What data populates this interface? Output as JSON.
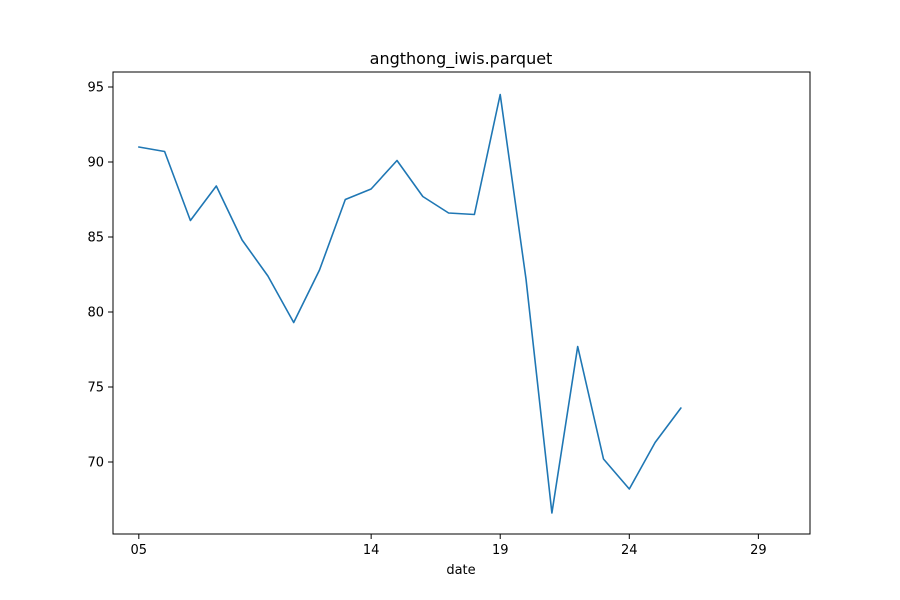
{
  "chart_data": {
    "type": "line",
    "title": "angthong_iwis.parquet",
    "xlabel": "date",
    "ylabel": "",
    "x_tick_labels": [
      "05",
      "14",
      "19",
      "24",
      "29"
    ],
    "x_tick_values": [
      5,
      14,
      19,
      24,
      29
    ],
    "y_ticks": [
      70,
      75,
      80,
      85,
      90,
      95
    ],
    "xlim": [
      4,
      31
    ],
    "ylim": [
      65.2,
      96.0
    ],
    "grid": false,
    "legend": "none",
    "series": [
      {
        "color": "#1f77b4",
        "points": [
          {
            "x": 5,
            "y": 91.0
          },
          {
            "x": 6,
            "y": 90.7
          },
          {
            "x": 7,
            "y": 86.1
          },
          {
            "x": 8,
            "y": 88.4
          },
          {
            "x": 9,
            "y": 84.8
          },
          {
            "x": 10,
            "y": 82.4
          },
          {
            "x": 11,
            "y": 79.3
          },
          {
            "x": 12,
            "y": 82.8
          },
          {
            "x": 13,
            "y": 87.5
          },
          {
            "x": 14,
            "y": 88.2
          },
          {
            "x": 15,
            "y": 90.1
          },
          {
            "x": 16,
            "y": 87.7
          },
          {
            "x": 17,
            "y": 86.6
          },
          {
            "x": 18,
            "y": 86.5
          },
          {
            "x": 19,
            "y": 94.5
          },
          {
            "x": 20,
            "y": 82.2
          },
          {
            "x": 21,
            "y": 66.6
          },
          {
            "x": 22,
            "y": 77.7
          },
          {
            "x": 23,
            "y": 70.2
          },
          {
            "x": 24,
            "y": 68.2
          },
          {
            "x": 25,
            "y": 71.3
          },
          {
            "x": 26,
            "y": 73.6
          }
        ]
      }
    ]
  }
}
